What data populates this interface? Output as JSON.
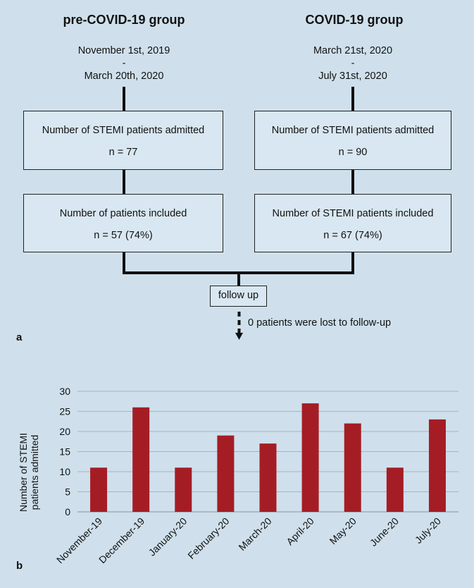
{
  "panel_a": {
    "label": "a",
    "left_group": {
      "title": "pre-COVID-19 group",
      "date_start": "November 1st, 2019",
      "date_sep": "-",
      "date_end": "March 20th, 2020",
      "admitted_label": "Number of STEMI patients admitted",
      "admitted_n": "n = 77",
      "included_label": "Number of patients included",
      "included_n": "n = 57 (74%)"
    },
    "right_group": {
      "title": "COVID-19 group",
      "date_start": "March 21st, 2020",
      "date_sep": "-",
      "date_end": "July 31st, 2020",
      "admitted_label": "Number of STEMI patients admitted",
      "admitted_n": "n = 90",
      "included_label": "Number of STEMI patients included",
      "included_n": "n = 67 (74%)"
    },
    "follow_up_label": "follow up",
    "lost_note": "0 patients were lost to follow-up"
  },
  "panel_b": {
    "label": "b"
  },
  "chart_data": {
    "type": "bar",
    "categories": [
      "November-19",
      "December-19",
      "January-20",
      "February-20",
      "March-20",
      "April-20",
      "May-20",
      "June-20",
      "July-20"
    ],
    "values": [
      11,
      26,
      11,
      19,
      17,
      27,
      22,
      11,
      23
    ],
    "ylabel": "Number of STEMI patients admitted",
    "ylim": [
      0,
      30
    ],
    "yticks": [
      0,
      5,
      10,
      15,
      20,
      25,
      30
    ],
    "grid": true,
    "bar_color": "#a51d24"
  }
}
